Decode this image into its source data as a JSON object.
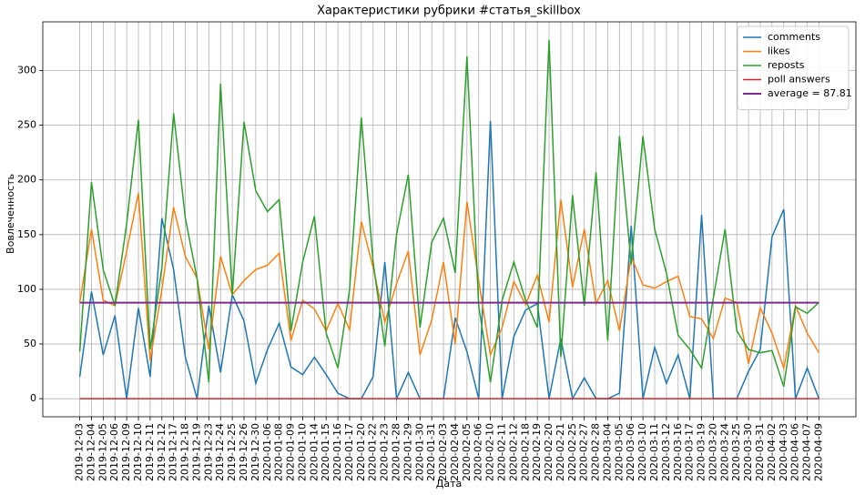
{
  "chart_data": {
    "type": "line",
    "title": "Характеристики рубрики #статья_skillbox",
    "x_label": "Дата",
    "y_label": "Вовлеченность",
    "categories": [
      "2019-12-03",
      "2019-12-04",
      "2019-12-05",
      "2019-12-06",
      "2019-12-09",
      "2019-12-10",
      "2019-12-11",
      "2019-12-12",
      "2019-12-17",
      "2019-12-18",
      "2019-12-19",
      "2019-12-23",
      "2019-12-24",
      "2019-12-25",
      "2019-12-26",
      "2019-12-30",
      "2020-01-06",
      "2020-01-08",
      "2020-01-09",
      "2020-01-10",
      "2020-01-14",
      "2020-01-15",
      "2020-01-16",
      "2020-01-17",
      "2020-01-20",
      "2020-01-22",
      "2020-01-23",
      "2020-01-28",
      "2020-01-29",
      "2020-01-30",
      "2020-01-31",
      "2020-02-03",
      "2020-02-04",
      "2020-02-05",
      "2020-02-06",
      "2020-02-10",
      "2020-02-11",
      "2020-02-12",
      "2020-02-18",
      "2020-02-19",
      "2020-02-20",
      "2020-02-21",
      "2020-02-25",
      "2020-02-27",
      "2020-02-28",
      "2020-03-04",
      "2020-03-05",
      "2020-03-06",
      "2020-03-10",
      "2020-03-11",
      "2020-03-12",
      "2020-03-16",
      "2020-03-17",
      "2020-03-19",
      "2020-03-20",
      "2020-03-24",
      "2020-03-25",
      "2020-03-30",
      "2020-03-31",
      "2020-04-02",
      "2020-04-03",
      "2020-04-06",
      "2020-04-07",
      "2020-04-09"
    ],
    "series": [
      {
        "name": "comments",
        "color": "#1f77b4",
        "values": [
          20,
          98,
          40,
          76,
          0,
          83,
          20,
          165,
          118,
          38,
          0,
          85,
          24,
          95,
          71,
          14,
          45,
          69,
          29,
          22,
          38,
          22,
          5,
          0,
          0,
          20,
          125,
          0,
          24,
          0,
          0,
          0,
          74,
          43,
          0,
          254,
          0,
          57,
          81,
          87,
          0,
          55,
          0,
          19,
          0,
          0,
          5,
          158,
          0,
          47,
          14,
          40,
          0,
          168,
          0,
          0,
          0,
          25,
          45,
          148,
          173,
          0,
          28,
          0
        ]
      },
      {
        "name": "likes",
        "color": "#ff7f0e",
        "values": [
          88,
          155,
          90,
          85,
          135,
          188,
          35,
          100,
          175,
          130,
          110,
          45,
          130,
          95,
          108,
          118,
          122,
          133,
          53,
          90,
          82,
          62,
          87,
          63,
          162,
          120,
          70,
          105,
          135,
          40,
          72,
          125,
          50,
          180,
          108,
          40,
          65,
          107,
          86,
          113,
          70,
          182,
          102,
          155,
          87,
          108,
          62,
          130,
          104,
          101,
          107,
          112,
          75,
          73,
          55,
          92,
          88,
          32,
          83,
          60,
          28,
          85,
          60,
          42
        ]
      },
      {
        "name": "reposts",
        "color": "#2ca02c",
        "values": [
          43,
          198,
          118,
          85,
          160,
          255,
          45,
          120,
          261,
          165,
          110,
          15,
          288,
          95,
          253,
          190,
          171,
          182,
          62,
          125,
          167,
          60,
          28,
          100,
          257,
          125,
          48,
          150,
          205,
          65,
          143,
          165,
          115,
          313,
          85,
          15,
          90,
          125,
          90,
          65,
          328,
          38,
          186,
          85,
          207,
          53,
          240,
          123,
          240,
          155,
          115,
          58,
          45,
          28,
          92,
          155,
          62,
          45,
          42,
          44,
          11,
          84,
          78,
          88
        ]
      },
      {
        "name": "poll answers",
        "color": "#d62728",
        "values": [
          0,
          0,
          0,
          0,
          0,
          0,
          0,
          0,
          0,
          0,
          0,
          0,
          0,
          0,
          0,
          0,
          0,
          0,
          0,
          0,
          0,
          0,
          0,
          0,
          0,
          0,
          0,
          0,
          0,
          0,
          0,
          0,
          0,
          0,
          0,
          0,
          0,
          0,
          0,
          0,
          0,
          0,
          0,
          0,
          0,
          0,
          0,
          0,
          0,
          0,
          0,
          0,
          0,
          0,
          0,
          0,
          0,
          0,
          0,
          0,
          0,
          0,
          0,
          0
        ]
      },
      {
        "name": "average = 87.81",
        "color": "#7b2d8e",
        "values": [
          87.81,
          87.81,
          87.81,
          87.81,
          87.81,
          87.81,
          87.81,
          87.81,
          87.81,
          87.81,
          87.81,
          87.81,
          87.81,
          87.81,
          87.81,
          87.81,
          87.81,
          87.81,
          87.81,
          87.81,
          87.81,
          87.81,
          87.81,
          87.81,
          87.81,
          87.81,
          87.81,
          87.81,
          87.81,
          87.81,
          87.81,
          87.81,
          87.81,
          87.81,
          87.81,
          87.81,
          87.81,
          87.81,
          87.81,
          87.81,
          87.81,
          87.81,
          87.81,
          87.81,
          87.81,
          87.81,
          87.81,
          87.81,
          87.81,
          87.81,
          87.81,
          87.81,
          87.81,
          87.81,
          87.81,
          87.81,
          87.81,
          87.81,
          87.81,
          87.81,
          87.81,
          87.81,
          87.81,
          87.81
        ]
      }
    ],
    "ylim": [
      -16.5,
      344.5
    ],
    "yticks": [
      0,
      50,
      100,
      150,
      200,
      250,
      300
    ],
    "grid": true,
    "legend": "upper right"
  }
}
